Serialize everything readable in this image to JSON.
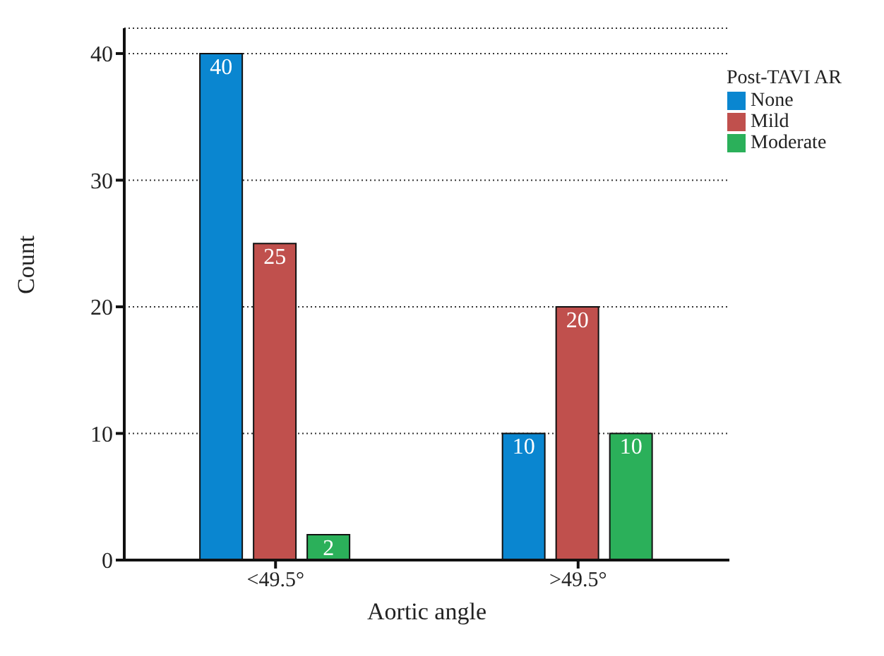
{
  "chart_data": {
    "type": "bar",
    "xlabel": "Aortic angle",
    "ylabel": "Count",
    "legend_title": "Post-TAVI AR",
    "categories": [
      "<49.5°",
      ">49.5°"
    ],
    "series": [
      {
        "name": "None",
        "color": "#0a86d0",
        "values": [
          40,
          10
        ]
      },
      {
        "name": "Mild",
        "color": "#c0504d",
        "values": [
          25,
          20
        ]
      },
      {
        "name": "Moderate",
        "color": "#2bb05a",
        "values": [
          2,
          10
        ]
      }
    ],
    "ylim": [
      0,
      42
    ],
    "yticks": [
      0,
      10,
      20,
      30,
      40
    ],
    "grid": "y",
    "legend": "top right",
    "data_labels": true
  }
}
